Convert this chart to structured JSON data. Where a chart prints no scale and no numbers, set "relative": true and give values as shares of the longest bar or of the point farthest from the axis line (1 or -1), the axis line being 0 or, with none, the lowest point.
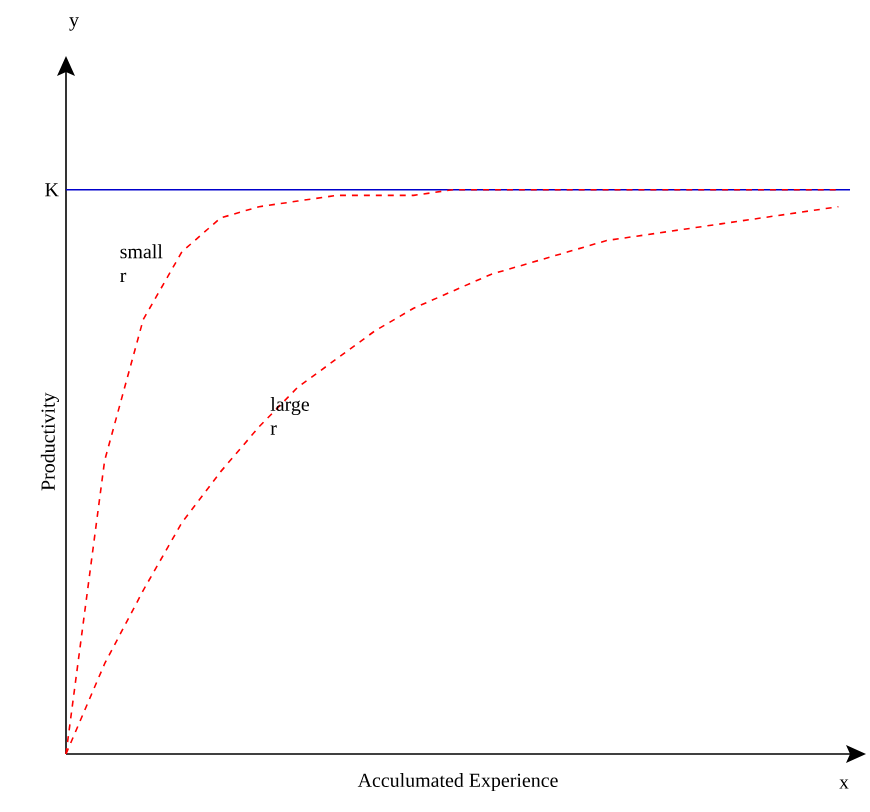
{
  "chart_data": {
    "type": "line",
    "relative": true,
    "xlabel": "Acculumated Experience",
    "ylabel": "Productivity",
    "line_style": "dashed",
    "legend": false,
    "categories": [
      null,
      null,
      null,
      null,
      null,
      null,
      null,
      null,
      null,
      null,
      null,
      null,
      null,
      null,
      null,
      null,
      null,
      null,
      null,
      null,
      null
    ],
    "series": [
      {
        "name": "small r",
        "color": "#ff0000",
        "values": [
          0,
          0.52,
          0.77,
          0.89,
          0.95,
          0.97,
          0.98,
          0.99,
          0.99,
          0.99,
          1,
          1,
          1,
          1,
          1,
          1,
          1,
          1,
          1,
          1,
          1
        ]
      },
      {
        "name": "large r",
        "color": "#ff0000",
        "values": [
          0,
          0.16,
          0.29,
          0.41,
          0.5,
          0.58,
          0.65,
          0.7,
          0.75,
          0.79,
          0.82,
          0.85,
          0.87,
          0.89,
          0.91,
          0.92,
          0.93,
          0.94,
          0.95,
          0.96,
          0.97
        ]
      }
    ],
    "ref_lines": [
      {
        "axis": "y",
        "value": 1,
        "label": "K",
        "color": "#0000cc",
        "line_style": "solid"
      }
    ],
    "annotations": [
      "y",
      "x"
    ]
  }
}
